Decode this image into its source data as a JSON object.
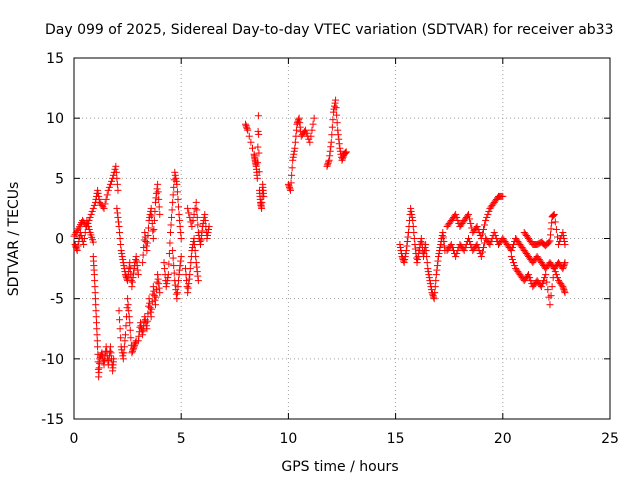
{
  "chart_data": {
    "type": "scatter",
    "title": "Day 099 of 2025, Sidereal Day-to-day VTEC variation (SDTVAR) for receiver ab33",
    "xlabel": "GPS time / hours",
    "ylabel": "SDTVAR / TECUs",
    "xlim": [
      0,
      25
    ],
    "ylim": [
      -15,
      15
    ],
    "xticks": [
      0,
      5,
      10,
      15,
      20,
      25
    ],
    "yticks": [
      -15,
      -10,
      -5,
      0,
      5,
      10,
      15
    ],
    "xtick_labels": [
      "0",
      "5",
      "10",
      "15",
      "20",
      "25"
    ],
    "ytick_labels": [
      "-15",
      "-10",
      "-5",
      "0",
      "5",
      "10",
      "15"
    ],
    "grid": true,
    "marker": "+",
    "marker_color": "#ff0000",
    "series": [
      {
        "name": "SDTVAR",
        "segments": [
          {
            "x": [
              0.0,
              0.2,
              0.4,
              0.6,
              0.8,
              1.0,
              1.1,
              1.2,
              1.4,
              1.6,
              1.8,
              1.95,
              2.05
            ],
            "y": [
              0.2,
              0.8,
              1.5,
              1.0,
              2.0,
              3.0,
              4.0,
              3.0,
              2.5,
              4.0,
              5.0,
              6.0,
              4.0
            ]
          },
          {
            "x": [
              0.05,
              0.15,
              0.3,
              0.45,
              0.6,
              0.75,
              0.9
            ],
            "y": [
              -0.5,
              -1.0,
              0.5,
              -0.5,
              1.5,
              0.5,
              -0.3
            ]
          },
          {
            "x": [
              0.9,
              0.95,
              1.0,
              1.05,
              1.1,
              1.15,
              1.2,
              1.3,
              1.4,
              1.5,
              1.6,
              1.7,
              1.8,
              1.85
            ],
            "y": [
              -1.5,
              -3.0,
              -5.0,
              -7.0,
              -9.0,
              -11.5,
              -10.0,
              -9.5,
              -10.5,
              -9.0,
              -10.5,
              -9.0,
              -11.0,
              -10.0
            ]
          },
          {
            "x": [
              2.0,
              2.1,
              2.2,
              2.3,
              2.4,
              2.5,
              2.6,
              2.7,
              2.8,
              2.9,
              3.0
            ],
            "y": [
              2.5,
              1.0,
              -1.0,
              -2.0,
              -3.0,
              -3.5,
              -2.0,
              -4.0,
              -2.5,
              -1.5,
              -3.0
            ]
          },
          {
            "x": [
              2.1,
              2.2,
              2.3,
              2.4,
              2.5,
              2.6,
              2.7,
              2.8,
              2.9
            ],
            "y": [
              -6.0,
              -9.0,
              -10.0,
              -8.0,
              -5.0,
              -7.0,
              -9.5,
              -9.0,
              -8.5
            ]
          },
          {
            "x": [
              3.0,
              3.1,
              3.2,
              3.3,
              3.4,
              3.5,
              3.6,
              3.7,
              3.8,
              3.9,
              4.0
            ],
            "y": [
              -8.5,
              -7.0,
              -8.0,
              -6.5,
              -7.5,
              -5.0,
              -6.5,
              -4.0,
              -5.5,
              -3.0,
              -4.5
            ]
          },
          {
            "x": [
              3.2,
              3.3,
              3.4,
              3.5,
              3.6,
              3.7,
              3.8,
              3.9,
              4.0
            ],
            "y": [
              -2.0,
              0.5,
              -1.0,
              1.5,
              2.5,
              0.0,
              3.0,
              4.5,
              2.0
            ]
          },
          {
            "x": [
              4.2,
              4.3,
              4.4,
              4.5,
              4.6,
              4.7,
              4.8,
              4.9,
              5.0
            ],
            "y": [
              -2.0,
              -4.0,
              -3.0,
              0.5,
              3.0,
              5.5,
              4.5,
              2.0,
              0.0
            ]
          },
          {
            "x": [
              4.6,
              4.7,
              4.8,
              4.9,
              5.0
            ],
            "y": [
              -1.0,
              -3.5,
              -5.0,
              -3.0,
              -1.5
            ]
          },
          {
            "x": [
              5.2,
              5.3,
              5.4,
              5.5,
              5.6,
              5.7,
              5.8
            ],
            "y": [
              -2.5,
              -4.5,
              -3.0,
              -1.0,
              0.0,
              -2.0,
              -3.5
            ]
          },
          {
            "x": [
              5.3,
              5.5,
              5.7,
              5.8,
              5.9,
              6.0,
              6.1,
              6.2,
              6.3
            ],
            "y": [
              2.5,
              1.0,
              3.0,
              0.5,
              -0.5,
              1.0,
              2.0,
              0.0,
              1.0
            ]
          },
          {
            "x": [
              8.0,
              8.1,
              8.4,
              8.45,
              8.5,
              8.55,
              8.6,
              8.65,
              8.7,
              8.75,
              8.8,
              8.85
            ],
            "y": [
              9.5,
              9.0,
              7.0,
              6.5,
              6.0,
              5.0,
              10.2,
              4.0,
              3.0,
              2.5,
              4.5,
              3.5
            ]
          },
          {
            "x": [
              10.0,
              10.1,
              10.2,
              10.3,
              10.4,
              10.5,
              10.6,
              10.8,
              11.0,
              11.2
            ],
            "y": [
              4.5,
              4.0,
              6.5,
              7.5,
              9.5,
              10.0,
              8.5,
              9.0,
              8.0,
              10.0
            ]
          },
          {
            "x": [
              11.8,
              11.9,
              12.0,
              12.1,
              12.2,
              12.3,
              12.4,
              12.5,
              12.6,
              12.7
            ],
            "y": [
              6.0,
              6.5,
              8.0,
              10.5,
              11.5,
              9.0,
              7.5,
              6.5,
              7.0,
              7.2
            ]
          },
          {
            "x": [
              15.2,
              15.3,
              15.4,
              15.5,
              15.6,
              15.7,
              15.8,
              15.9,
              16.0,
              16.1,
              16.2,
              16.3,
              16.4,
              16.5,
              16.6,
              16.7,
              16.8,
              16.9,
              17.0,
              17.1,
              17.2,
              17.3
            ],
            "y": [
              -0.5,
              -1.5,
              -2.0,
              -1.0,
              0.5,
              2.5,
              1.5,
              -0.5,
              -2.0,
              -1.0,
              0.0,
              -1.5,
              -0.5,
              -2.5,
              -3.5,
              -4.5,
              -5.0,
              -3.0,
              -1.5,
              -0.5,
              0.5,
              -1.0
            ]
          },
          {
            "x": [
              17.4,
              17.6,
              17.8,
              18.0,
              18.2,
              18.4,
              18.6,
              18.8,
              19.0,
              19.2,
              19.4,
              19.6,
              19.8,
              20.0
            ],
            "y": [
              1.0,
              1.5,
              2.0,
              1.0,
              1.5,
              2.0,
              0.5,
              1.0,
              0.0,
              1.5,
              2.5,
              3.0,
              3.5,
              3.5
            ]
          },
          {
            "x": [
              17.4,
              17.6,
              17.8,
              18.0,
              18.2,
              18.4,
              18.6,
              18.8,
              19.0,
              19.2,
              19.4,
              19.6,
              19.8,
              20.0,
              20.2,
              20.4,
              20.6
            ],
            "y": [
              -1.0,
              -0.5,
              -1.5,
              -0.5,
              -1.0,
              0.0,
              -1.0,
              -0.5,
              -1.5,
              0.0,
              -0.5,
              0.5,
              -0.5,
              0.0,
              -0.5,
              -1.0,
              0.0
            ]
          },
          {
            "x": [
              20.4,
              20.6,
              20.8,
              21.0,
              21.2,
              21.4,
              21.6,
              21.8,
              22.0,
              22.2,
              22.4,
              22.6,
              22.8,
              22.9
            ],
            "y": [
              -1.5,
              -2.5,
              -3.0,
              -3.5,
              -3.0,
              -4.0,
              -3.5,
              -4.0,
              -3.0,
              -5.5,
              -2.5,
              -3.5,
              -4.0,
              -4.5
            ]
          },
          {
            "x": [
              20.6,
              20.8,
              21.0,
              21.2,
              21.4,
              21.6,
              21.8,
              22.0,
              22.2,
              22.4,
              22.6,
              22.8,
              22.9
            ],
            "y": [
              0.0,
              -0.5,
              -1.0,
              -1.5,
              -2.0,
              -1.5,
              -2.0,
              -2.5,
              -2.0,
              -2.5,
              -2.0,
              -2.5,
              -2.0
            ]
          },
          {
            "x": [
              21.0,
              21.2,
              21.4,
              21.6,
              21.8,
              22.0,
              22.2,
              22.3,
              22.4,
              22.6,
              22.8,
              22.9
            ],
            "y": [
              0.5,
              0.0,
              -0.5,
              -0.5,
              -0.3,
              -0.6,
              -0.2,
              1.8,
              2.0,
              -0.5,
              0.5,
              -0.5
            ]
          }
        ]
      }
    ]
  }
}
